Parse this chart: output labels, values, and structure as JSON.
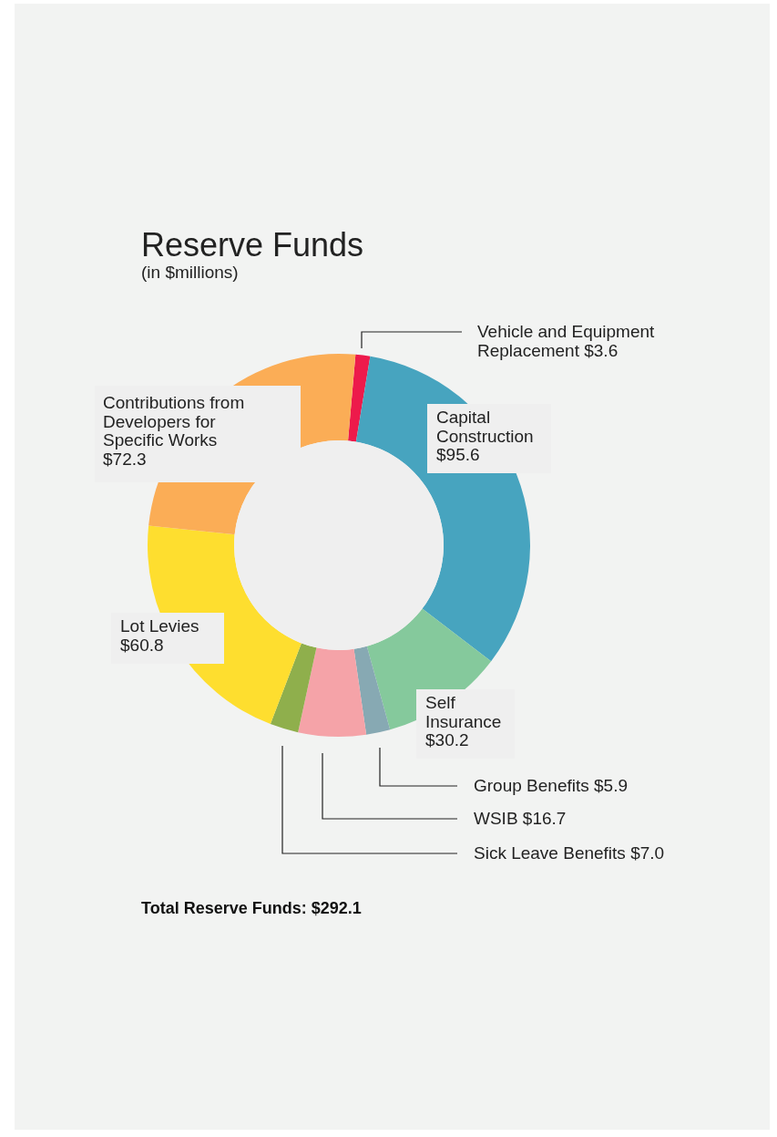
{
  "chart_data": {
    "type": "donut",
    "title": "Reserve Funds",
    "subtitle": "(in $millions)",
    "categories": [
      "Vehicle and Equipment Replacement",
      "Capital Construction",
      "Self Insurance",
      "Group Benefits",
      "WSIB",
      "Sick Leave Benefits",
      "Lot Levies",
      "Contributions from Developers for Specific Works"
    ],
    "values": [
      3.6,
      95.6,
      30.2,
      5.9,
      16.7,
      7.0,
      60.8,
      72.3
    ],
    "value_labels": [
      "$3.6",
      "$95.6",
      "$30.2",
      "$5.9",
      "$16.7",
      "$7.0",
      "$60.8",
      "$72.3"
    ],
    "colors": [
      "#ed1a4b",
      "#47a4bf",
      "#85c99c",
      "#87a9b3",
      "#f5a3a8",
      "#8faf4c",
      "#fede2f",
      "#fbad56"
    ],
    "annotations": [
      "Total Reserve Funds: $292.1"
    ]
  }
}
